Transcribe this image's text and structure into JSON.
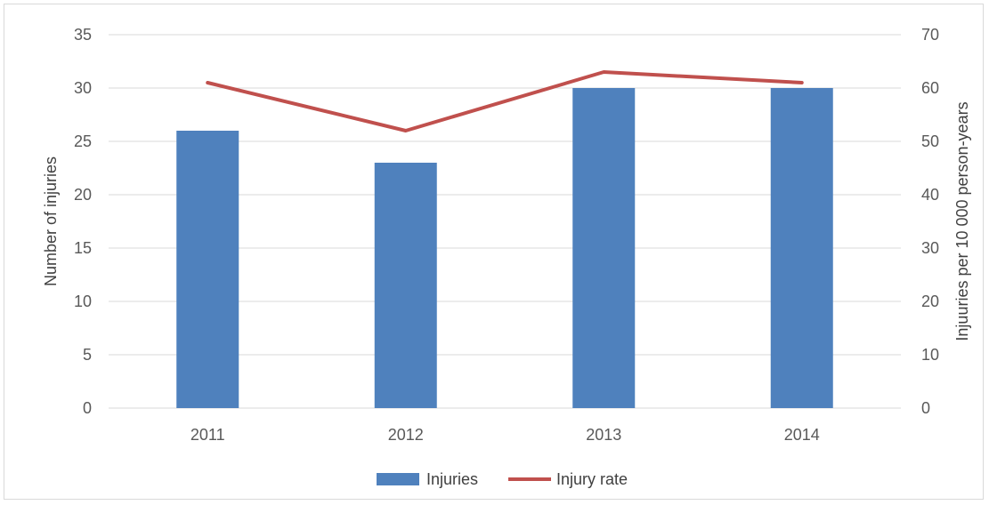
{
  "chart_data": {
    "type": "bar",
    "categories": [
      "2011",
      "2012",
      "2013",
      "2014"
    ],
    "series": [
      {
        "name": "Injuries",
        "type": "bar",
        "axis": "left",
        "values": [
          26,
          23,
          30,
          30
        ],
        "color": "#4f81bd"
      },
      {
        "name": "Injury rate",
        "type": "line",
        "axis": "right",
        "values": [
          61,
          52,
          63,
          61
        ],
        "color": "#c0504d"
      }
    ],
    "ylabel": "Number of injuries",
    "y2label": "Injuuries per 10 000 person-years",
    "ylim": [
      0,
      35
    ],
    "y2lim": [
      0,
      70
    ],
    "yticks": [
      "0",
      "5",
      "10",
      "15",
      "20",
      "25",
      "30",
      "35"
    ],
    "y2ticks": [
      "0",
      "10",
      "20",
      "30",
      "40",
      "50",
      "60",
      "70"
    ],
    "grid": true,
    "legend_position": "bottom"
  }
}
